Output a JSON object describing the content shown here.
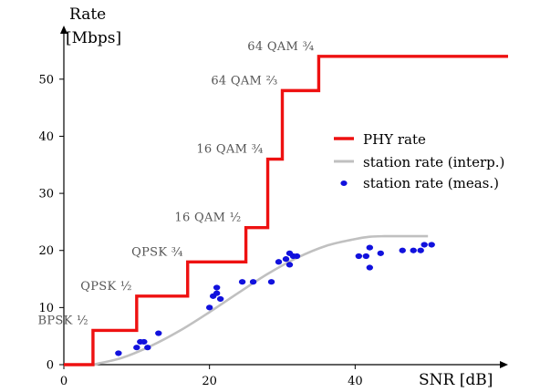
{
  "chart_data": {
    "type": "line",
    "ylabel_line1": "Rate",
    "ylabel_line2": "[Mbps]",
    "xlabel": "SNR [dB]",
    "xlim": [
      0,
      61
    ],
    "ylim": [
      0,
      57
    ],
    "xticks": [
      0,
      20,
      40
    ],
    "yticks": [
      0,
      10,
      20,
      30,
      40,
      50
    ],
    "grid": false,
    "legend_position": "right",
    "colors": {
      "phy": "#ee1111",
      "interp": "#c0c0c0",
      "meas": "#1111dd"
    },
    "series": [
      {
        "name": "PHY rate",
        "kind": "step",
        "x": [
          0,
          4,
          4,
          10,
          10,
          17,
          17,
          25,
          25,
          28,
          28,
          30,
          30,
          35,
          35,
          61
        ],
        "y": [
          0,
          0,
          6,
          6,
          12,
          12,
          18,
          18,
          24,
          24,
          36,
          36,
          48,
          48,
          54,
          54
        ]
      },
      {
        "name": "station rate (interp.)",
        "kind": "curve",
        "x": [
          4,
          8,
          12,
          16,
          20,
          24,
          28,
          32,
          36,
          40,
          42,
          44,
          46,
          48,
          50
        ],
        "y": [
          0,
          1.2,
          3.3,
          6.0,
          9.2,
          12.6,
          15.9,
          18.7,
          20.8,
          22.0,
          22.4,
          22.5,
          22.5,
          22.5,
          22.5
        ]
      },
      {
        "name": "station rate (meas.)",
        "kind": "scatter",
        "x": [
          7.5,
          10,
          10.5,
          11,
          11.5,
          13,
          20,
          20.5,
          21,
          21,
          21.5,
          24.5,
          26,
          28.5,
          29.5,
          30.5,
          31,
          31,
          31.5,
          32,
          40.5,
          41.5,
          42,
          42,
          43.5,
          46.5,
          48,
          49,
          49.5,
          50.5
        ],
        "y": [
          2,
          3,
          4,
          4,
          3,
          5.5,
          10,
          12,
          12.5,
          13.5,
          11.5,
          14.5,
          14.5,
          14.5,
          18,
          18.5,
          19.5,
          17.5,
          19,
          19,
          19,
          19,
          20.5,
          17,
          19.5,
          20,
          20,
          20,
          21,
          21
        ]
      }
    ],
    "annotations": [
      {
        "text": "BPSK ½",
        "x": 4,
        "y": 6
      },
      {
        "text": "QPSK ½",
        "x": 10,
        "y": 12
      },
      {
        "text": "QPSK ¾",
        "x": 17,
        "y": 18
      },
      {
        "text": "16 QAM ½",
        "x": 25,
        "y": 24
      },
      {
        "text": "16 QAM ¾",
        "x": 28,
        "y": 36
      },
      {
        "text": "64 QAM ⅔",
        "x": 30,
        "y": 48
      },
      {
        "text": "64 QAM ¾",
        "x": 35,
        "y": 54
      }
    ]
  }
}
